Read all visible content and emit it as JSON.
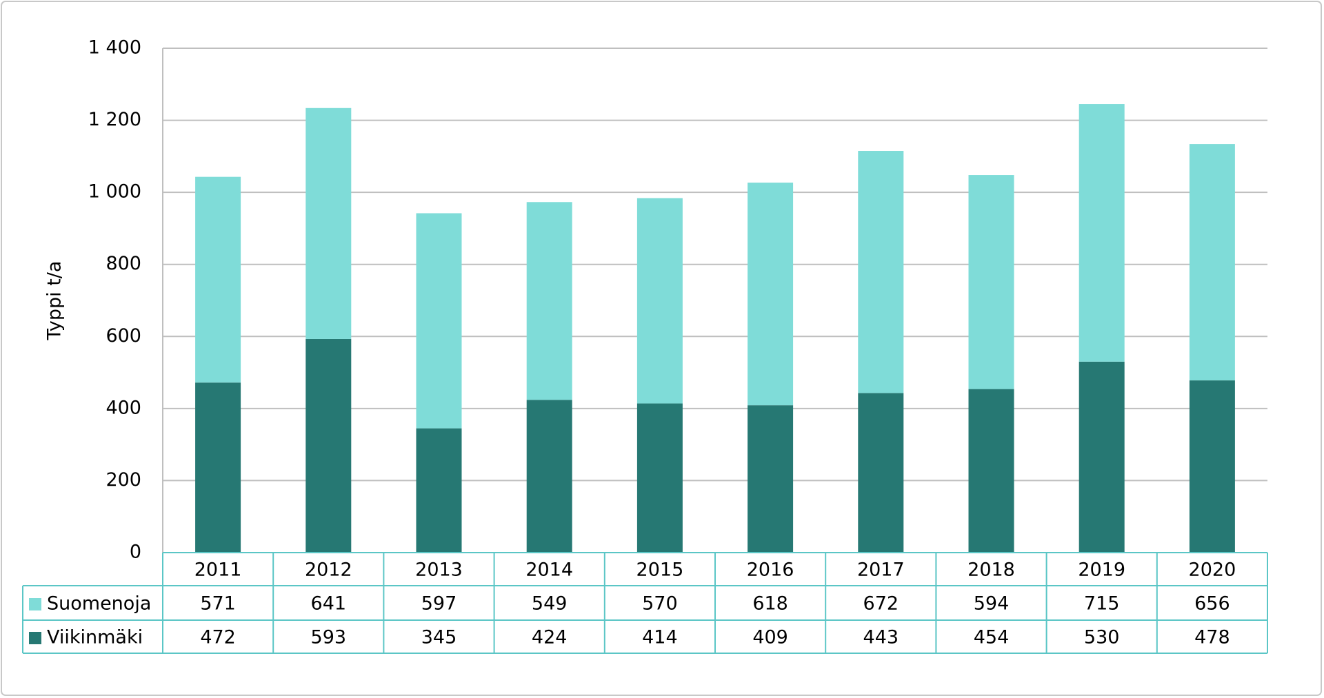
{
  "chart_data": {
    "type": "bar",
    "stacked": true,
    "y_label": "Typpi t/a",
    "categories": [
      "2011",
      "2012",
      "2013",
      "2014",
      "2015",
      "2016",
      "2017",
      "2018",
      "2019",
      "2020"
    ],
    "series": [
      {
        "name": "Suomenoja",
        "color": "#7fdcd8",
        "values": [
          571,
          641,
          597,
          549,
          570,
          618,
          672,
          594,
          715,
          656
        ]
      },
      {
        "name": "Viikinmäki",
        "color": "#267873",
        "values": [
          472,
          593,
          345,
          424,
          414,
          409,
          443,
          454,
          530,
          478
        ]
      }
    ],
    "ylim": [
      0,
      1400
    ],
    "yticks": [
      0,
      200,
      400,
      600,
      800,
      {
        "value": 1000,
        "label": "1 000"
      },
      {
        "value": 1200,
        "label": "1 200"
      },
      {
        "value": 1400,
        "label": "1 400"
      }
    ],
    "grid": true
  }
}
